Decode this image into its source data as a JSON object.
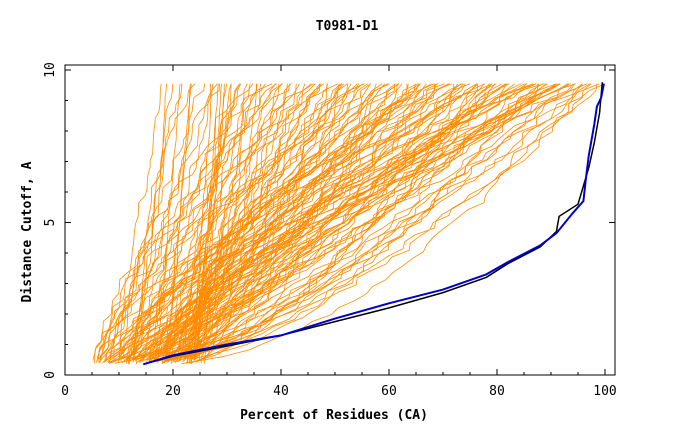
{
  "chart_data": {
    "type": "line",
    "title": "T0981-D1",
    "xlabel": "Percent of Residues (CA)",
    "ylabel": "Distance Cutoff, A",
    "xlim": [
      0,
      100
    ],
    "ylim": [
      0,
      10
    ],
    "x_ticks": [
      0,
      20,
      40,
      60,
      80,
      100
    ],
    "y_ticks": [
      0,
      5,
      10
    ],
    "grid": false,
    "legend": "none",
    "colors": {
      "background_models": "#ff8c00",
      "highlight_primary": "#0000cc",
      "highlight_secondary": "#000000",
      "axes": "#000000"
    },
    "background_model_count": 150,
    "series": [
      {
        "role": "highlight_secondary",
        "points": [
          [
            14.5,
            0.35
          ],
          [
            20,
            0.62
          ],
          [
            30,
            0.95
          ],
          [
            40,
            1.3
          ],
          [
            50,
            1.75
          ],
          [
            60,
            2.2
          ],
          [
            70,
            2.7
          ],
          [
            78,
            3.2
          ],
          [
            82,
            3.65
          ],
          [
            88,
            4.2
          ],
          [
            91,
            4.7
          ],
          [
            91.5,
            5.2
          ],
          [
            95,
            5.6
          ],
          [
            96,
            6.2
          ],
          [
            97,
            6.8
          ],
          [
            98,
            7.6
          ],
          [
            99,
            8.6
          ],
          [
            99.5,
            9.6
          ]
        ]
      },
      {
        "role": "highlight_primary",
        "points": [
          [
            14.5,
            0.35
          ],
          [
            20,
            0.65
          ],
          [
            30,
            1.0
          ],
          [
            40,
            1.3
          ],
          [
            50,
            1.85
          ],
          [
            60,
            2.35
          ],
          [
            70,
            2.8
          ],
          [
            78,
            3.3
          ],
          [
            82,
            3.7
          ],
          [
            88,
            4.25
          ],
          [
            91,
            4.65
          ],
          [
            94,
            5.3
          ],
          [
            96,
            5.7
          ],
          [
            96.5,
            6.5
          ],
          [
            97,
            7.2
          ],
          [
            98,
            8.2
          ],
          [
            98.5,
            8.8
          ],
          [
            99.3,
            9.1
          ],
          [
            99.8,
            9.55
          ]
        ]
      }
    ]
  }
}
